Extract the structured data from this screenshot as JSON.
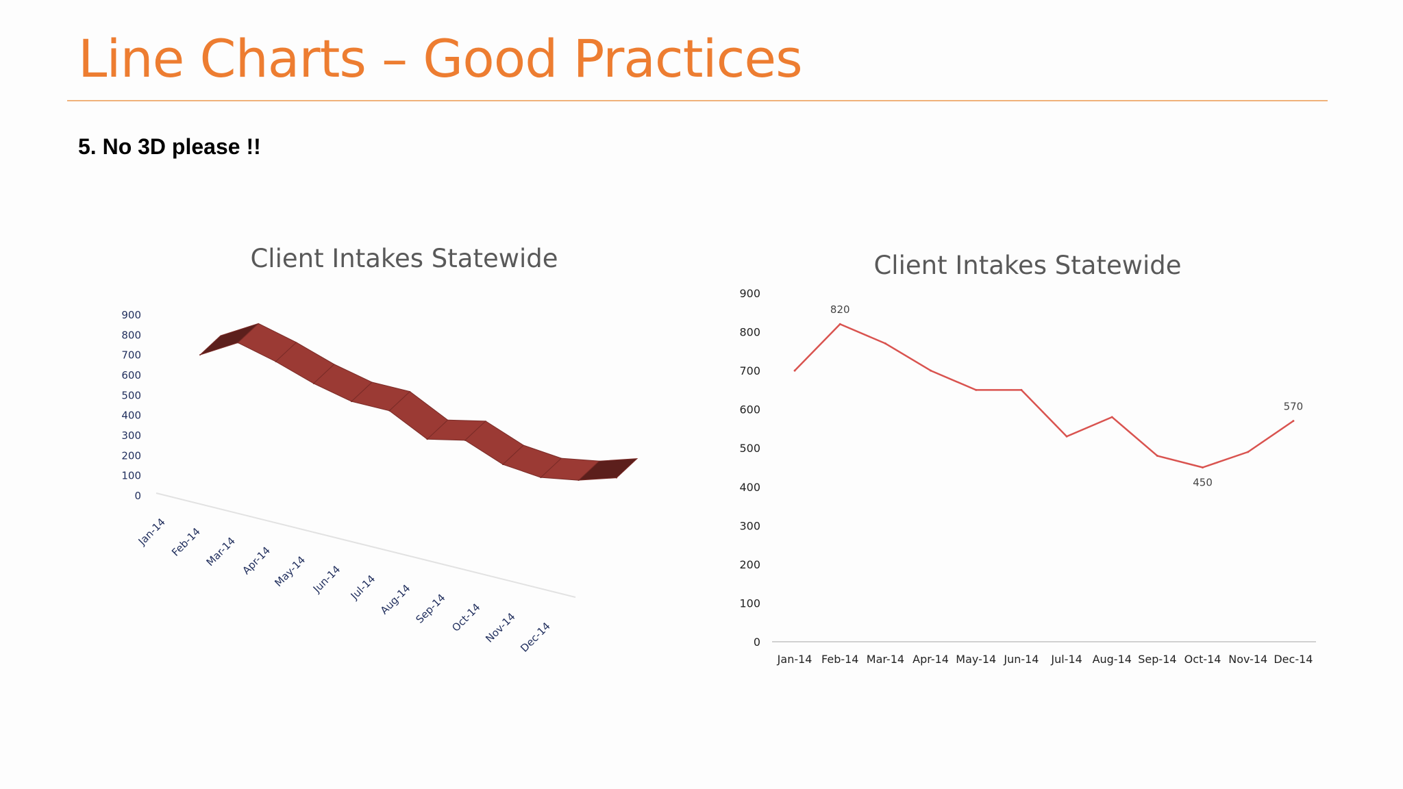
{
  "slide": {
    "title": "Line Charts – Good Practices",
    "subtitle": "5. No 3D please !!"
  },
  "chart_data": [
    {
      "type": "line",
      "style": "3d-ribbon",
      "title": "Client Intakes Statewide",
      "categories": [
        "Jan-14",
        "Feb-14",
        "Mar-14",
        "Apr-14",
        "May-14",
        "Jun-14",
        "Jul-14",
        "Aug-14",
        "Sep-14",
        "Oct-14",
        "Nov-14",
        "Dec-14"
      ],
      "series": [
        {
          "values": [
            700,
            820,
            770,
            700,
            650,
            650,
            530,
            580,
            480,
            450,
            490,
            570
          ]
        }
      ],
      "yticks": [
        0,
        100,
        200,
        300,
        400,
        500,
        600,
        700,
        800,
        900
      ],
      "ylim": [
        0,
        900
      ],
      "color": "#9b3a34",
      "grid": false,
      "legend": "none"
    },
    {
      "type": "line",
      "title": "Client Intakes Statewide",
      "categories": [
        "Jan-14",
        "Feb-14",
        "Mar-14",
        "Apr-14",
        "May-14",
        "Jun-14",
        "Jul-14",
        "Aug-14",
        "Sep-14",
        "Oct-14",
        "Nov-14",
        "Dec-14"
      ],
      "series": [
        {
          "values": [
            700,
            820,
            770,
            700,
            650,
            650,
            530,
            580,
            480,
            450,
            490,
            570
          ]
        }
      ],
      "data_labels": [
        {
          "category": "Feb-14",
          "text": "820"
        },
        {
          "category": "Oct-14",
          "text": "450"
        },
        {
          "category": "Dec-14",
          "text": "570"
        }
      ],
      "yticks": [
        0,
        100,
        200,
        300,
        400,
        500,
        600,
        700,
        800,
        900
      ],
      "ylim": [
        0,
        900
      ],
      "color": "#d9534f",
      "grid": false,
      "legend": "none"
    }
  ]
}
